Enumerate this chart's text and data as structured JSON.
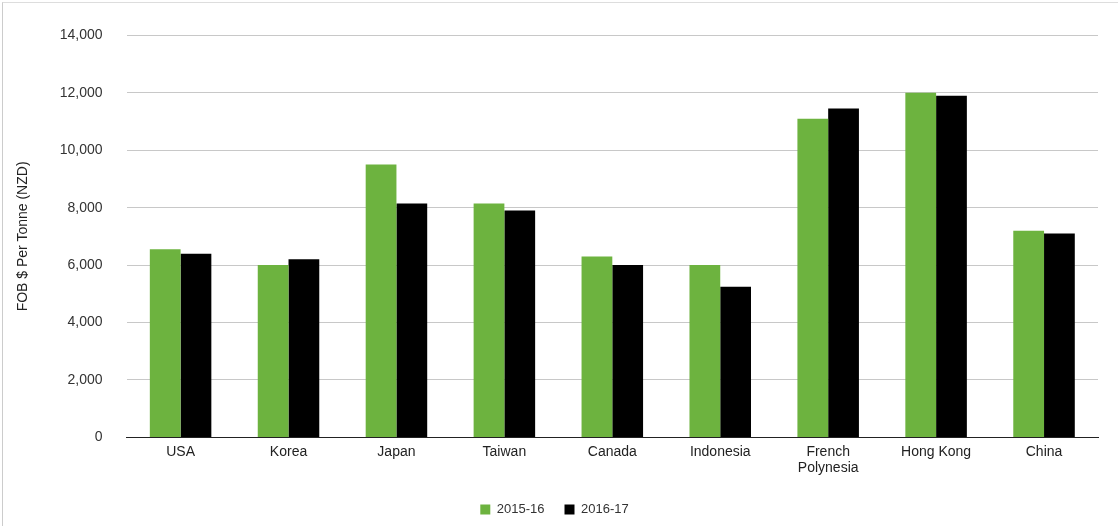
{
  "chart_data": {
    "type": "bar",
    "ylabel": "FOB $ Per Tonne (NZD)",
    "categories": [
      "USA",
      "Korea",
      "Japan",
      "Taiwan",
      "Canada",
      "Indonesia",
      "French Polynesia",
      "Hong Kong",
      "China"
    ],
    "series": [
      {
        "name": "2015-16",
        "color": "#6db33f",
        "values": [
          6550,
          6000,
          9500,
          8150,
          6300,
          6000,
          11100,
          12000,
          7200
        ]
      },
      {
        "name": "2016-17",
        "color": "#000000",
        "values": [
          6400,
          6200,
          8150,
          7900,
          6000,
          5250,
          11450,
          11900,
          7100
        ]
      }
    ],
    "ylim": [
      0,
      14000
    ],
    "yticks": [
      {
        "value": 0,
        "label": "0"
      },
      {
        "value": 2000,
        "label": "2,000"
      },
      {
        "value": 4000,
        "label": "4,000"
      },
      {
        "value": 6000,
        "label": "6,000"
      },
      {
        "value": 8000,
        "label": "8,000"
      },
      {
        "value": 10000,
        "label": "10,000"
      },
      {
        "value": 12000,
        "label": "12,000"
      },
      {
        "value": 14000,
        "label": "14,000"
      }
    ],
    "grid": "y",
    "legend": "bottom"
  }
}
